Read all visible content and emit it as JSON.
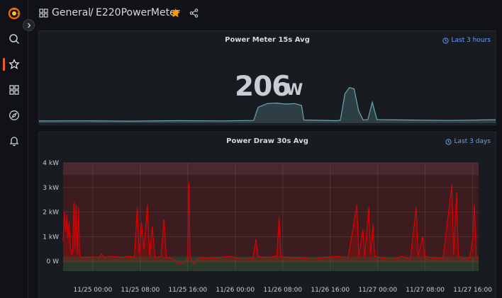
{
  "sidebar": {
    "items": [
      {
        "name": "grafana-logo-icon"
      },
      {
        "name": "search-icon"
      },
      {
        "name": "starred-icon"
      },
      {
        "name": "dashboards-icon"
      },
      {
        "name": "explore-icon"
      },
      {
        "name": "alerting-icon"
      }
    ]
  },
  "header": {
    "folder": "General",
    "separator": "/",
    "title": "E220PowerMeter"
  },
  "colors": {
    "accent": "#f05a28",
    "star": "#ff9900",
    "link": "#6e9fff",
    "sparkline": "#6ba6b6",
    "series": "#e10000",
    "threshold_low": "#2b3a2a",
    "threshold_high": "#3d1c20"
  },
  "panels": [
    {
      "title": "Power Meter 15s Avg",
      "time_range": "Last 3 hours",
      "stat_value": "206",
      "stat_unit": "W"
    },
    {
      "title": "Power Draw 30s Avg",
      "time_range": "Last 3 days"
    }
  ],
  "chart_data": {
    "type": "line",
    "yticks": [
      "0 W",
      "1 kW",
      "2 kW",
      "3 kW",
      "4 kW"
    ],
    "ylim": [
      0,
      4000
    ],
    "xticks": [
      "11/25 00:00",
      "11/25 08:00",
      "11/25 16:00",
      "11/26 00:00",
      "11/26 08:00",
      "11/26 16:00",
      "11/27 00:00",
      "11/27 08:00",
      "11/27 16:00"
    ],
    "x_start": "11/24 19:00",
    "x_end": "11/27 17:00",
    "grid": true,
    "thresholds": [
      {
        "from": -400,
        "to": 200,
        "color": "#2b3a2a"
      },
      {
        "from": 200,
        "to": 3500,
        "color": "#3d1c20"
      },
      {
        "from": 3500,
        "to": 4000,
        "color": "#4a2830"
      }
    ],
    "series": [
      {
        "values": [
          [
            0.0,
            800
          ],
          [
            0.2,
            2000
          ],
          [
            0.4,
            1200
          ],
          [
            0.6,
            1900
          ],
          [
            0.8,
            900
          ],
          [
            1.0,
            1600
          ],
          [
            1.2,
            700
          ],
          [
            1.4,
            300
          ],
          [
            1.6,
            400
          ],
          [
            1.8,
            2400
          ],
          [
            2.0,
            500
          ],
          [
            2.2,
            2300
          ],
          [
            2.4,
            300
          ],
          [
            2.6,
            2200
          ],
          [
            2.8,
            200
          ],
          [
            3.2,
            150
          ],
          [
            4.0,
            150
          ],
          [
            5.0,
            180
          ],
          [
            6.0,
            160
          ],
          [
            6.5,
            300
          ],
          [
            7.0,
            150
          ],
          [
            8.0,
            200
          ],
          [
            9.0,
            180
          ],
          [
            10.0,
            150
          ],
          [
            11.0,
            200
          ],
          [
            12.0,
            180
          ],
          [
            12.5,
            2200
          ],
          [
            12.8,
            300
          ],
          [
            13.2,
            1600
          ],
          [
            13.6,
            500
          ],
          [
            14.2,
            2300
          ],
          [
            14.6,
            200
          ],
          [
            15.0,
            1400
          ],
          [
            15.5,
            150
          ],
          [
            16.5,
            200
          ],
          [
            17.0,
            1700
          ],
          [
            17.4,
            150
          ],
          [
            18.5,
            100
          ],
          [
            19.5,
            -100
          ],
          [
            20.5,
            -50
          ],
          [
            21.0,
            150
          ],
          [
            21.2,
            3200
          ],
          [
            21.4,
            200
          ],
          [
            22.0,
            -100
          ],
          [
            23.0,
            150
          ],
          [
            24.0,
            120
          ],
          [
            26.0,
            150
          ],
          [
            28.0,
            200
          ],
          [
            30.0,
            100
          ],
          [
            32.0,
            130
          ],
          [
            32.5,
            900
          ],
          [
            32.8,
            200
          ],
          [
            34.0,
            150
          ],
          [
            36.0,
            200
          ],
          [
            36.4,
            1800
          ],
          [
            36.7,
            200
          ],
          [
            38.0,
            150
          ],
          [
            40.0,
            150
          ],
          [
            42.0,
            100
          ],
          [
            44.0,
            150
          ],
          [
            46.0,
            200
          ],
          [
            48.0,
            150
          ],
          [
            49.5,
            2300
          ],
          [
            49.8,
            200
          ],
          [
            50.5,
            1300
          ],
          [
            50.8,
            200
          ],
          [
            51.5,
            2200
          ],
          [
            51.8,
            300
          ],
          [
            52.2,
            1500
          ],
          [
            52.5,
            200
          ],
          [
            53.5,
            150
          ],
          [
            55.0,
            100
          ],
          [
            56.0,
            120
          ],
          [
            57.0,
            200
          ],
          [
            58.5,
            100
          ],
          [
            59.5,
            2200
          ],
          [
            59.8,
            200
          ],
          [
            60.6,
            1000
          ],
          [
            60.9,
            200
          ],
          [
            62.0,
            150
          ],
          [
            64.0,
            120
          ],
          [
            65.5,
            3100
          ],
          [
            65.8,
            300
          ],
          [
            66.3,
            2800
          ],
          [
            66.6,
            200
          ],
          [
            67.5,
            100
          ],
          [
            68.5,
            150
          ],
          [
            69.0,
            900
          ],
          [
            69.3,
            2300
          ],
          [
            69.6,
            200
          ],
          [
            70.0,
            150
          ]
        ]
      }
    ],
    "spark_values": [
      [
        0,
        90
      ],
      [
        10,
        95
      ],
      [
        20,
        85
      ],
      [
        30,
        100
      ],
      [
        40,
        92
      ],
      [
        47,
        110
      ],
      [
        48,
        650
      ],
      [
        50,
        800
      ],
      [
        52,
        820
      ],
      [
        54,
        780
      ],
      [
        56,
        800
      ],
      [
        57.5,
        720
      ],
      [
        58,
        130
      ],
      [
        65,
        100
      ],
      [
        66,
        120
      ],
      [
        67,
        1200
      ],
      [
        68,
        1450
      ],
      [
        69,
        1400
      ],
      [
        70,
        500
      ],
      [
        71,
        130
      ],
      [
        72,
        140
      ],
      [
        73,
        850
      ],
      [
        74,
        150
      ],
      [
        75,
        140
      ],
      [
        80,
        130
      ],
      [
        90,
        110
      ],
      [
        100,
        140
      ]
    ]
  }
}
